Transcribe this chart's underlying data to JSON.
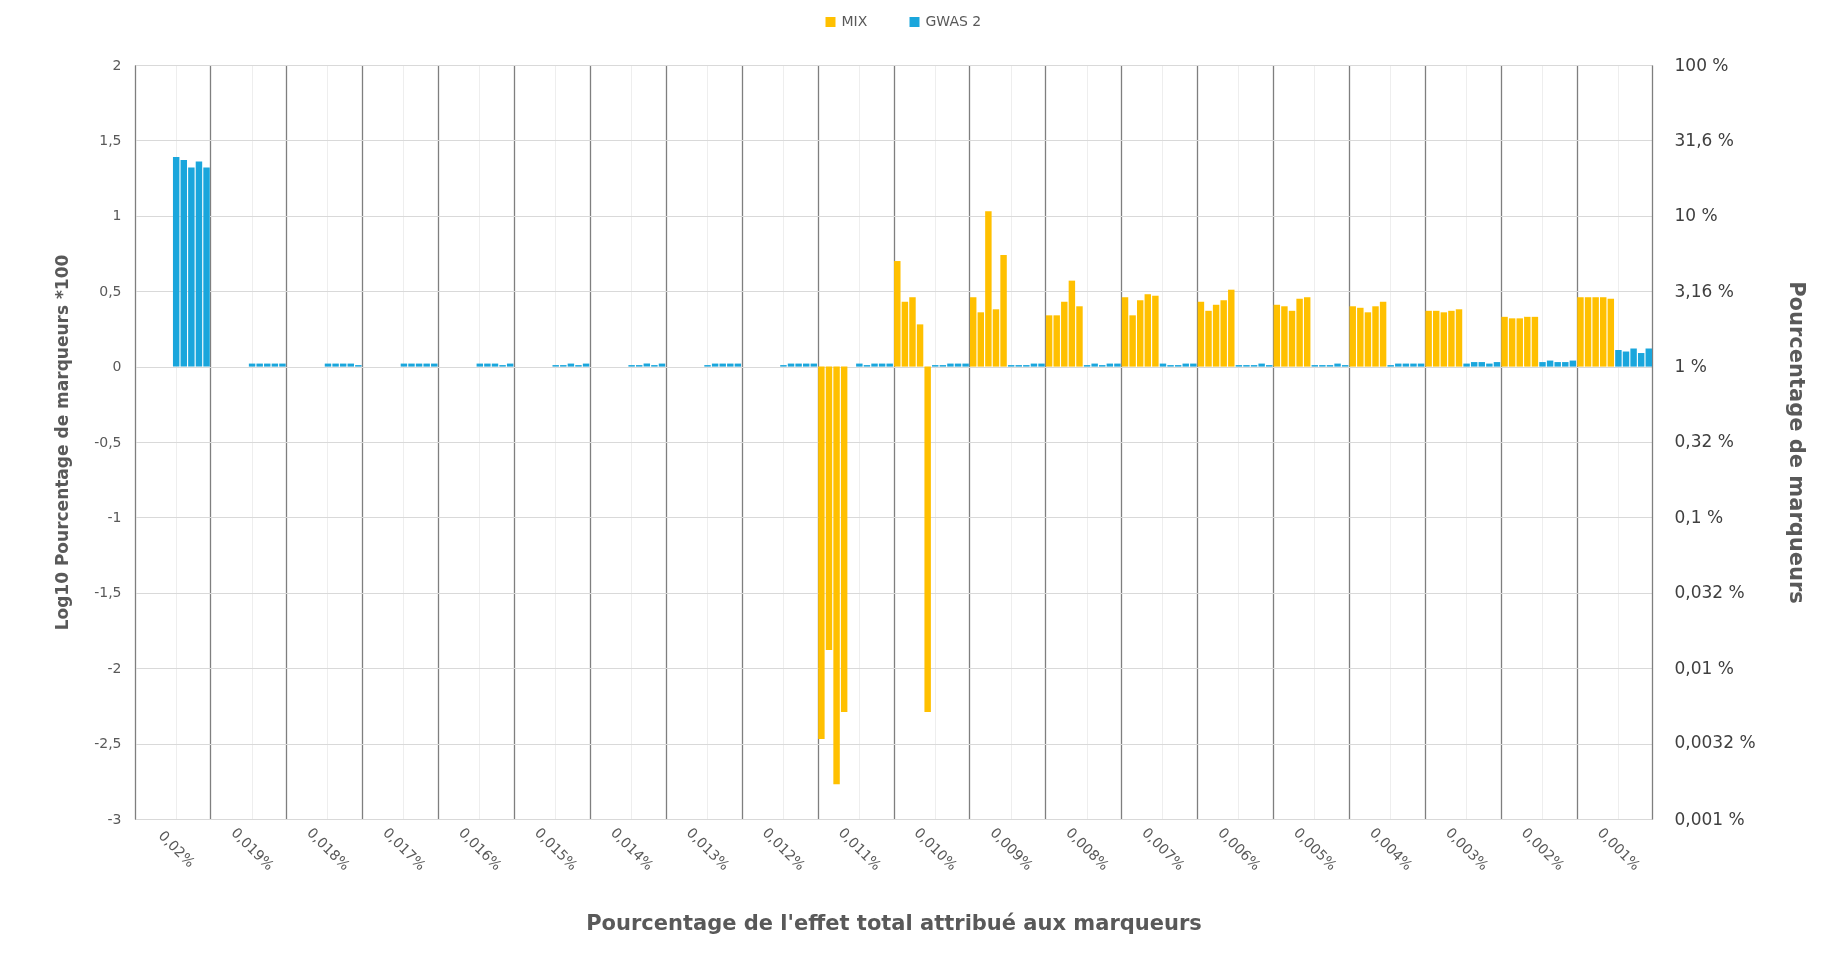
{
  "chart_data": {
    "type": "bar",
    "xlabel": "Pourcentage de l'effet total attribué aux marqueurs",
    "ylabel": "Log10 Pourcentage de marqueurs *100",
    "y2label": "Pourcentage de marqueurs",
    "categories": [
      null,
      null,
      null,
      null,
      null,
      "0,02%",
      null,
      null,
      null,
      null,
      null,
      null,
      null,
      null,
      null,
      "0,019%",
      null,
      null,
      null,
      null,
      null,
      null,
      null,
      null,
      null,
      "0,018%",
      null,
      null,
      null,
      null,
      null,
      null,
      null,
      null,
      null,
      "0,017%",
      null,
      null,
      null,
      null,
      null,
      null,
      null,
      null,
      null,
      "0,016%",
      null,
      null,
      null,
      null,
      null,
      null,
      null,
      null,
      null,
      "0,015%",
      null,
      null,
      null,
      null,
      null,
      null,
      null,
      null,
      null,
      "0,014%",
      null,
      null,
      null,
      null,
      null,
      null,
      null,
      null,
      null,
      "0,013%",
      null,
      null,
      null,
      null,
      null,
      null,
      null,
      null,
      null,
      "0,012%",
      null,
      null,
      null,
      null,
      null,
      null,
      null,
      null,
      null,
      "0,011%",
      null,
      null,
      null,
      null,
      null,
      null,
      null,
      null,
      null,
      "0,010%",
      null,
      null,
      null,
      null,
      null,
      null,
      null,
      null,
      null,
      "0,009%",
      null,
      null,
      null,
      null,
      null,
      null,
      null,
      null,
      null,
      "0,008%",
      null,
      null,
      null,
      null,
      null,
      null,
      null,
      null,
      null,
      "0,007%",
      null,
      null,
      null,
      null,
      null,
      null,
      null,
      null,
      null,
      "0,006%",
      null,
      null,
      null,
      null,
      null,
      null,
      null,
      null,
      null,
      "0,005%",
      null,
      null,
      null,
      null,
      null,
      null,
      null,
      null,
      null,
      "0,004%",
      null,
      null,
      null,
      null,
      null,
      null,
      null,
      null,
      null,
      "0,003%",
      null,
      null,
      null,
      null,
      null,
      null,
      null,
      null,
      null,
      "0,002%",
      null,
      null,
      null,
      null,
      null,
      null,
      null,
      null,
      null,
      "0,001%",
      null,
      null,
      null,
      null
    ],
    "series": [
      {
        "name": "MIX",
        "color": "#ffc000",
        "values": [
          null,
          null,
          null,
          null,
          null,
          null,
          null,
          null,
          null,
          null,
          null,
          null,
          null,
          null,
          null,
          null,
          null,
          null,
          null,
          null,
          null,
          null,
          null,
          null,
          null,
          null,
          null,
          null,
          null,
          null,
          null,
          null,
          null,
          null,
          null,
          null,
          null,
          null,
          null,
          null,
          null,
          null,
          null,
          null,
          null,
          null,
          null,
          null,
          null,
          null,
          null,
          null,
          null,
          null,
          null,
          null,
          null,
          null,
          null,
          null,
          null,
          null,
          null,
          null,
          null,
          null,
          null,
          null,
          null,
          null,
          null,
          null,
          null,
          null,
          null,
          null,
          null,
          null,
          null,
          null,
          null,
          null,
          null,
          null,
          null,
          null,
          null,
          null,
          null,
          null,
          -2.47,
          -1.88,
          -2.77,
          -2.29,
          null,
          null,
          null,
          null,
          null,
          null,
          0.7,
          0.43,
          0.46,
          0.28,
          -2.29,
          null,
          null,
          null,
          null,
          null,
          0.46,
          0.36,
          1.03,
          0.38,
          0.74,
          null,
          null,
          null,
          null,
          null,
          0.34,
          0.34,
          0.43,
          0.57,
          0.4,
          null,
          null,
          null,
          null,
          null,
          0.46,
          0.34,
          0.44,
          0.48,
          0.47,
          null,
          null,
          null,
          null,
          null,
          0.43,
          0.37,
          0.41,
          0.44,
          0.51,
          null,
          null,
          null,
          null,
          null,
          0.41,
          0.4,
          0.37,
          0.45,
          0.46,
          null,
          null,
          null,
          null,
          null,
          0.4,
          0.39,
          0.36,
          0.4,
          0.43,
          null,
          null,
          null,
          null,
          null,
          0.37,
          0.37,
          0.36,
          0.37,
          0.38,
          null,
          null,
          null,
          null,
          null,
          0.33,
          0.32,
          0.32,
          0.33,
          0.33,
          null,
          null,
          null,
          null,
          null,
          0.46,
          0.46,
          0.46,
          0.46,
          0.45,
          null,
          null,
          null,
          null,
          null
        ]
      },
      {
        "name": "GWAS 2",
        "color": "#1aa6dc",
        "values": [
          null,
          null,
          null,
          null,
          null,
          1.39,
          1.37,
          1.32,
          1.36,
          1.32,
          null,
          null,
          null,
          null,
          null,
          0.02,
          0.02,
          0.02,
          0.02,
          0.02,
          null,
          null,
          null,
          null,
          null,
          0.02,
          0.02,
          0.02,
          0.02,
          0.01,
          null,
          null,
          null,
          null,
          null,
          0.02,
          0.02,
          0.02,
          0.02,
          0.02,
          null,
          null,
          null,
          null,
          null,
          0.02,
          0.02,
          0.02,
          0.01,
          0.02,
          null,
          null,
          null,
          null,
          null,
          0.01,
          0.01,
          0.02,
          0.01,
          0.02,
          null,
          null,
          null,
          null,
          null,
          0.01,
          0.01,
          0.02,
          0.01,
          0.02,
          null,
          null,
          null,
          null,
          null,
          0.01,
          0.02,
          0.02,
          0.02,
          0.02,
          null,
          null,
          null,
          null,
          null,
          0.01,
          0.02,
          0.02,
          0.02,
          0.02,
          null,
          null,
          null,
          null,
          null,
          0.02,
          0.01,
          0.02,
          0.02,
          0.02,
          null,
          null,
          null,
          null,
          null,
          0.01,
          0.01,
          0.02,
          0.02,
          0.02,
          null,
          null,
          null,
          null,
          null,
          0.01,
          0.01,
          0.01,
          0.02,
          0.02,
          null,
          null,
          null,
          null,
          null,
          0.01,
          0.02,
          0.01,
          0.02,
          0.02,
          null,
          null,
          null,
          null,
          null,
          0.02,
          0.01,
          0.01,
          0.02,
          0.02,
          null,
          null,
          null,
          null,
          null,
          0.01,
          0.01,
          0.01,
          0.02,
          0.01,
          null,
          null,
          null,
          null,
          null,
          0.01,
          0.01,
          0.01,
          0.02,
          0.01,
          null,
          null,
          null,
          null,
          null,
          0.01,
          0.02,
          0.02,
          0.02,
          0.02,
          null,
          null,
          null,
          null,
          null,
          0.02,
          0.03,
          0.03,
          0.02,
          0.03,
          null,
          null,
          null,
          null,
          null,
          0.03,
          0.04,
          0.03,
          0.03,
          0.04,
          null,
          null,
          null,
          null,
          null,
          0.11,
          0.1,
          0.12,
          0.09,
          0.12
        ]
      }
    ],
    "ylim": [
      -3,
      2
    ],
    "yticks": [
      {
        "value": -3,
        "label": "-3"
      },
      {
        "value": -2.5,
        "label": "-2,5"
      },
      {
        "value": -2,
        "label": "-2"
      },
      {
        "value": -1.5,
        "label": "-1,5"
      },
      {
        "value": -1,
        "label": "-1"
      },
      {
        "value": -0.5,
        "label": "-0,5"
      },
      0,
      {
        "value": 0.5,
        "label": "0,5"
      },
      1,
      {
        "value": 1.5,
        "label": "1,5"
      },
      2
    ],
    "log": "y2",
    "y2lim": [
      0.001,
      100
    ],
    "y2ticks": [
      {
        "value": 100,
        "label": "100 %"
      },
      {
        "value": 31.6,
        "label": "31,6 %"
      },
      {
        "value": 10,
        "label": "10 %"
      },
      {
        "value": 3.16,
        "label": "3,16 %"
      },
      {
        "value": 1,
        "label": "1 %"
      },
      {
        "value": 0.32,
        "label": "0,32 %"
      },
      {
        "value": 0.1,
        "label": "0,1 %"
      },
      {
        "value": 0.032,
        "label": "0,032 %"
      },
      {
        "value": 0.01,
        "label": "0,01 %"
      },
      {
        "value": 0.0032,
        "label": "0,0032 %"
      },
      {
        "value": 0.001,
        "label": "0,001 %"
      }
    ],
    "grid": true,
    "legend": "top"
  }
}
